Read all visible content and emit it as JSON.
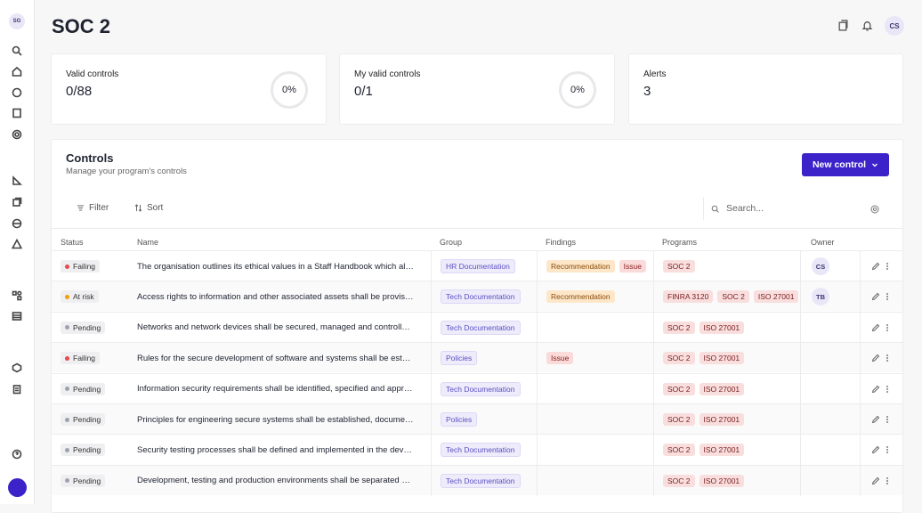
{
  "sidebar": {
    "avatar": "SG"
  },
  "header": {
    "title": "SOC 2",
    "user": "CS"
  },
  "stats": [
    {
      "label": "Valid controls",
      "value": "0/88",
      "percent": "0%"
    },
    {
      "label": "My valid controls",
      "value": "0/1",
      "percent": "0%"
    },
    {
      "label": "Alerts",
      "value": "3"
    }
  ],
  "controls": {
    "title": "Controls",
    "subtitle": "Manage your program's controls",
    "new_button": "New control",
    "filter": "Filter",
    "sort": "Sort",
    "search_placeholder": "Search...",
    "columns": [
      "Status",
      "Name",
      "Group",
      "Findings",
      "Programs",
      "Owner"
    ],
    "rows": [
      {
        "status": {
          "label": "Failing",
          "color": "#e5484d"
        },
        "name": "The organisation outlines its ethical values in a Staff Handbook which al…",
        "group": "HR Documentation",
        "findings": [
          "Recommendation",
          "Issue"
        ],
        "programs": [
          "SOC 2"
        ],
        "owner": "CS"
      },
      {
        "status": {
          "label": "At risk",
          "color": "#f59e0b"
        },
        "name": "Access rights to information and other associated assets shall be provis…",
        "group": "Tech Documentation",
        "findings": [
          "Recommendation"
        ],
        "programs": [
          "FINRA 3120",
          "SOC 2",
          "ISO 27001"
        ],
        "owner": "TB"
      },
      {
        "status": {
          "label": "Pending",
          "color": "#9ca3af"
        },
        "name": "Networks and network devices shall be secured, managed and controll…",
        "group": "Tech Documentation",
        "findings": [],
        "programs": [
          "SOC 2",
          "ISO 27001"
        ]
      },
      {
        "status": {
          "label": "Failing",
          "color": "#e5484d"
        },
        "name": "Rules for the secure development of software and systems shall be est…",
        "group": "Policies",
        "findings": [
          "Issue"
        ],
        "programs": [
          "SOC 2",
          "ISO 27001"
        ]
      },
      {
        "status": {
          "label": "Pending",
          "color": "#9ca3af"
        },
        "name": "Information security requirements shall be identified, specified and appr…",
        "group": "Tech Documentation",
        "findings": [],
        "programs": [
          "SOC 2",
          "ISO 27001"
        ]
      },
      {
        "status": {
          "label": "Pending",
          "color": "#9ca3af"
        },
        "name": "Principles for engineering secure systems shall be established, docume…",
        "group": "Policies",
        "findings": [],
        "programs": [
          "SOC 2",
          "ISO 27001"
        ]
      },
      {
        "status": {
          "label": "Pending",
          "color": "#9ca3af"
        },
        "name": "Security testing processes shall be defined and implemented in the dev…",
        "group": "Tech Documentation",
        "findings": [],
        "programs": [
          "SOC 2",
          "ISO 27001"
        ]
      },
      {
        "status": {
          "label": "Pending",
          "color": "#9ca3af"
        },
        "name": "Development, testing and production environments shall be separated …",
        "group": "Tech Documentation",
        "findings": [],
        "programs": [
          "SOC 2",
          "ISO 27001"
        ]
      }
    ]
  }
}
